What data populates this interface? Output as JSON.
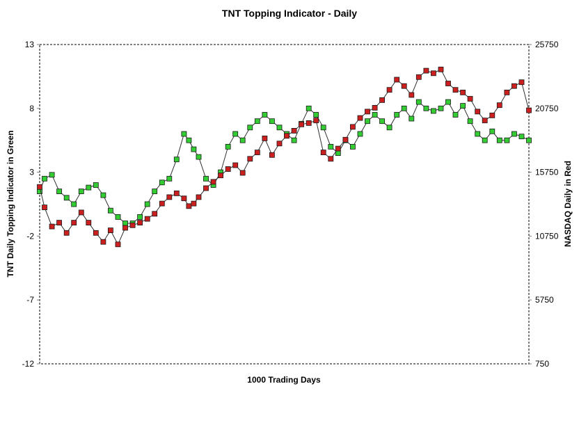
{
  "chart_data": {
    "type": "line",
    "title": "TNT Topping Indicator - Daily",
    "xlabel": "1000 Trading Days",
    "ylabel": "TNT Daily Topping Indicator in Green",
    "y2label": "NASDAQ Daily in Red",
    "xlim": [
      0,
      1000
    ],
    "ylim": [
      -12,
      13
    ],
    "y2lim": [
      750,
      25750
    ],
    "yticks": [
      "13",
      "8",
      "3",
      "-2",
      "-7",
      "-12"
    ],
    "y2ticks": [
      "25750",
      "20750",
      "15750",
      "10750",
      "5750",
      "750"
    ],
    "grid": false,
    "marker": "square",
    "series": [
      {
        "name": "TNT Daily Topping Indicator",
        "axis": "left",
        "color": "#33cc33",
        "x": [
          0,
          10,
          25,
          40,
          55,
          70,
          85,
          100,
          115,
          130,
          145,
          160,
          175,
          190,
          205,
          220,
          235,
          250,
          265,
          280,
          295,
          305,
          315,
          325,
          340,
          355,
          370,
          385,
          400,
          415,
          430,
          445,
          460,
          475,
          490,
          505,
          520,
          535,
          550,
          565,
          580,
          595,
          610,
          625,
          640,
          655,
          670,
          685,
          700,
          715,
          730,
          745,
          760,
          775,
          790,
          805,
          820,
          835,
          850,
          865,
          880,
          895,
          910,
          925,
          940,
          955,
          970,
          985,
          1000
        ],
        "y": [
          1.5,
          2.5,
          2.8,
          1.5,
          1,
          0.5,
          1.5,
          1.8,
          2,
          1.2,
          0,
          -0.5,
          -1,
          -1,
          -0.5,
          0.5,
          1.5,
          2.2,
          2.5,
          4,
          6,
          5.5,
          4.8,
          4.2,
          2.5,
          2,
          3,
          5,
          6,
          5.5,
          6.5,
          7,
          7.5,
          7,
          6.5,
          6,
          5.5,
          6.8,
          8,
          7.5,
          6.5,
          5,
          4.5,
          5.5,
          5,
          6,
          7,
          7.5,
          7,
          6.5,
          7.5,
          8,
          7.2,
          8.5,
          8,
          7.8,
          8,
          8.5,
          7.5,
          8.2,
          7,
          6,
          5.5,
          6.2,
          5.5,
          5.5,
          6,
          5.8,
          5.5
        ]
      },
      {
        "name": "NASDAQ Daily",
        "axis": "right",
        "color": "#cc1f1f",
        "x": [
          0,
          10,
          25,
          40,
          55,
          70,
          85,
          100,
          115,
          130,
          145,
          160,
          175,
          190,
          205,
          220,
          235,
          250,
          265,
          280,
          295,
          305,
          315,
          325,
          340,
          355,
          370,
          385,
          400,
          415,
          430,
          445,
          460,
          475,
          490,
          505,
          520,
          535,
          550,
          565,
          580,
          595,
          610,
          625,
          640,
          655,
          670,
          685,
          700,
          715,
          730,
          745,
          760,
          775,
          790,
          805,
          820,
          835,
          850,
          865,
          880,
          895,
          910,
          925,
          940,
          955,
          970,
          985,
          1000
        ],
        "y": [
          14600,
          13000,
          11500,
          11800,
          11000,
          11800,
          12600,
          11800,
          11000,
          10300,
          11200,
          10100,
          11400,
          11600,
          11800,
          12100,
          12500,
          13300,
          13800,
          14100,
          13700,
          13100,
          13300,
          13800,
          14500,
          15000,
          15500,
          16000,
          16300,
          15700,
          16800,
          17300,
          18400,
          17100,
          18000,
          18600,
          19000,
          19500,
          19600,
          19800,
          17300,
          16800,
          17600,
          18300,
          19300,
          20000,
          20500,
          20800,
          21400,
          22200,
          23000,
          22500,
          21800,
          23200,
          23700,
          23500,
          23800,
          22700,
          22200,
          22000,
          21500,
          20500,
          19800,
          20200,
          21000,
          22000,
          22500,
          22800,
          20600
        ]
      }
    ]
  }
}
